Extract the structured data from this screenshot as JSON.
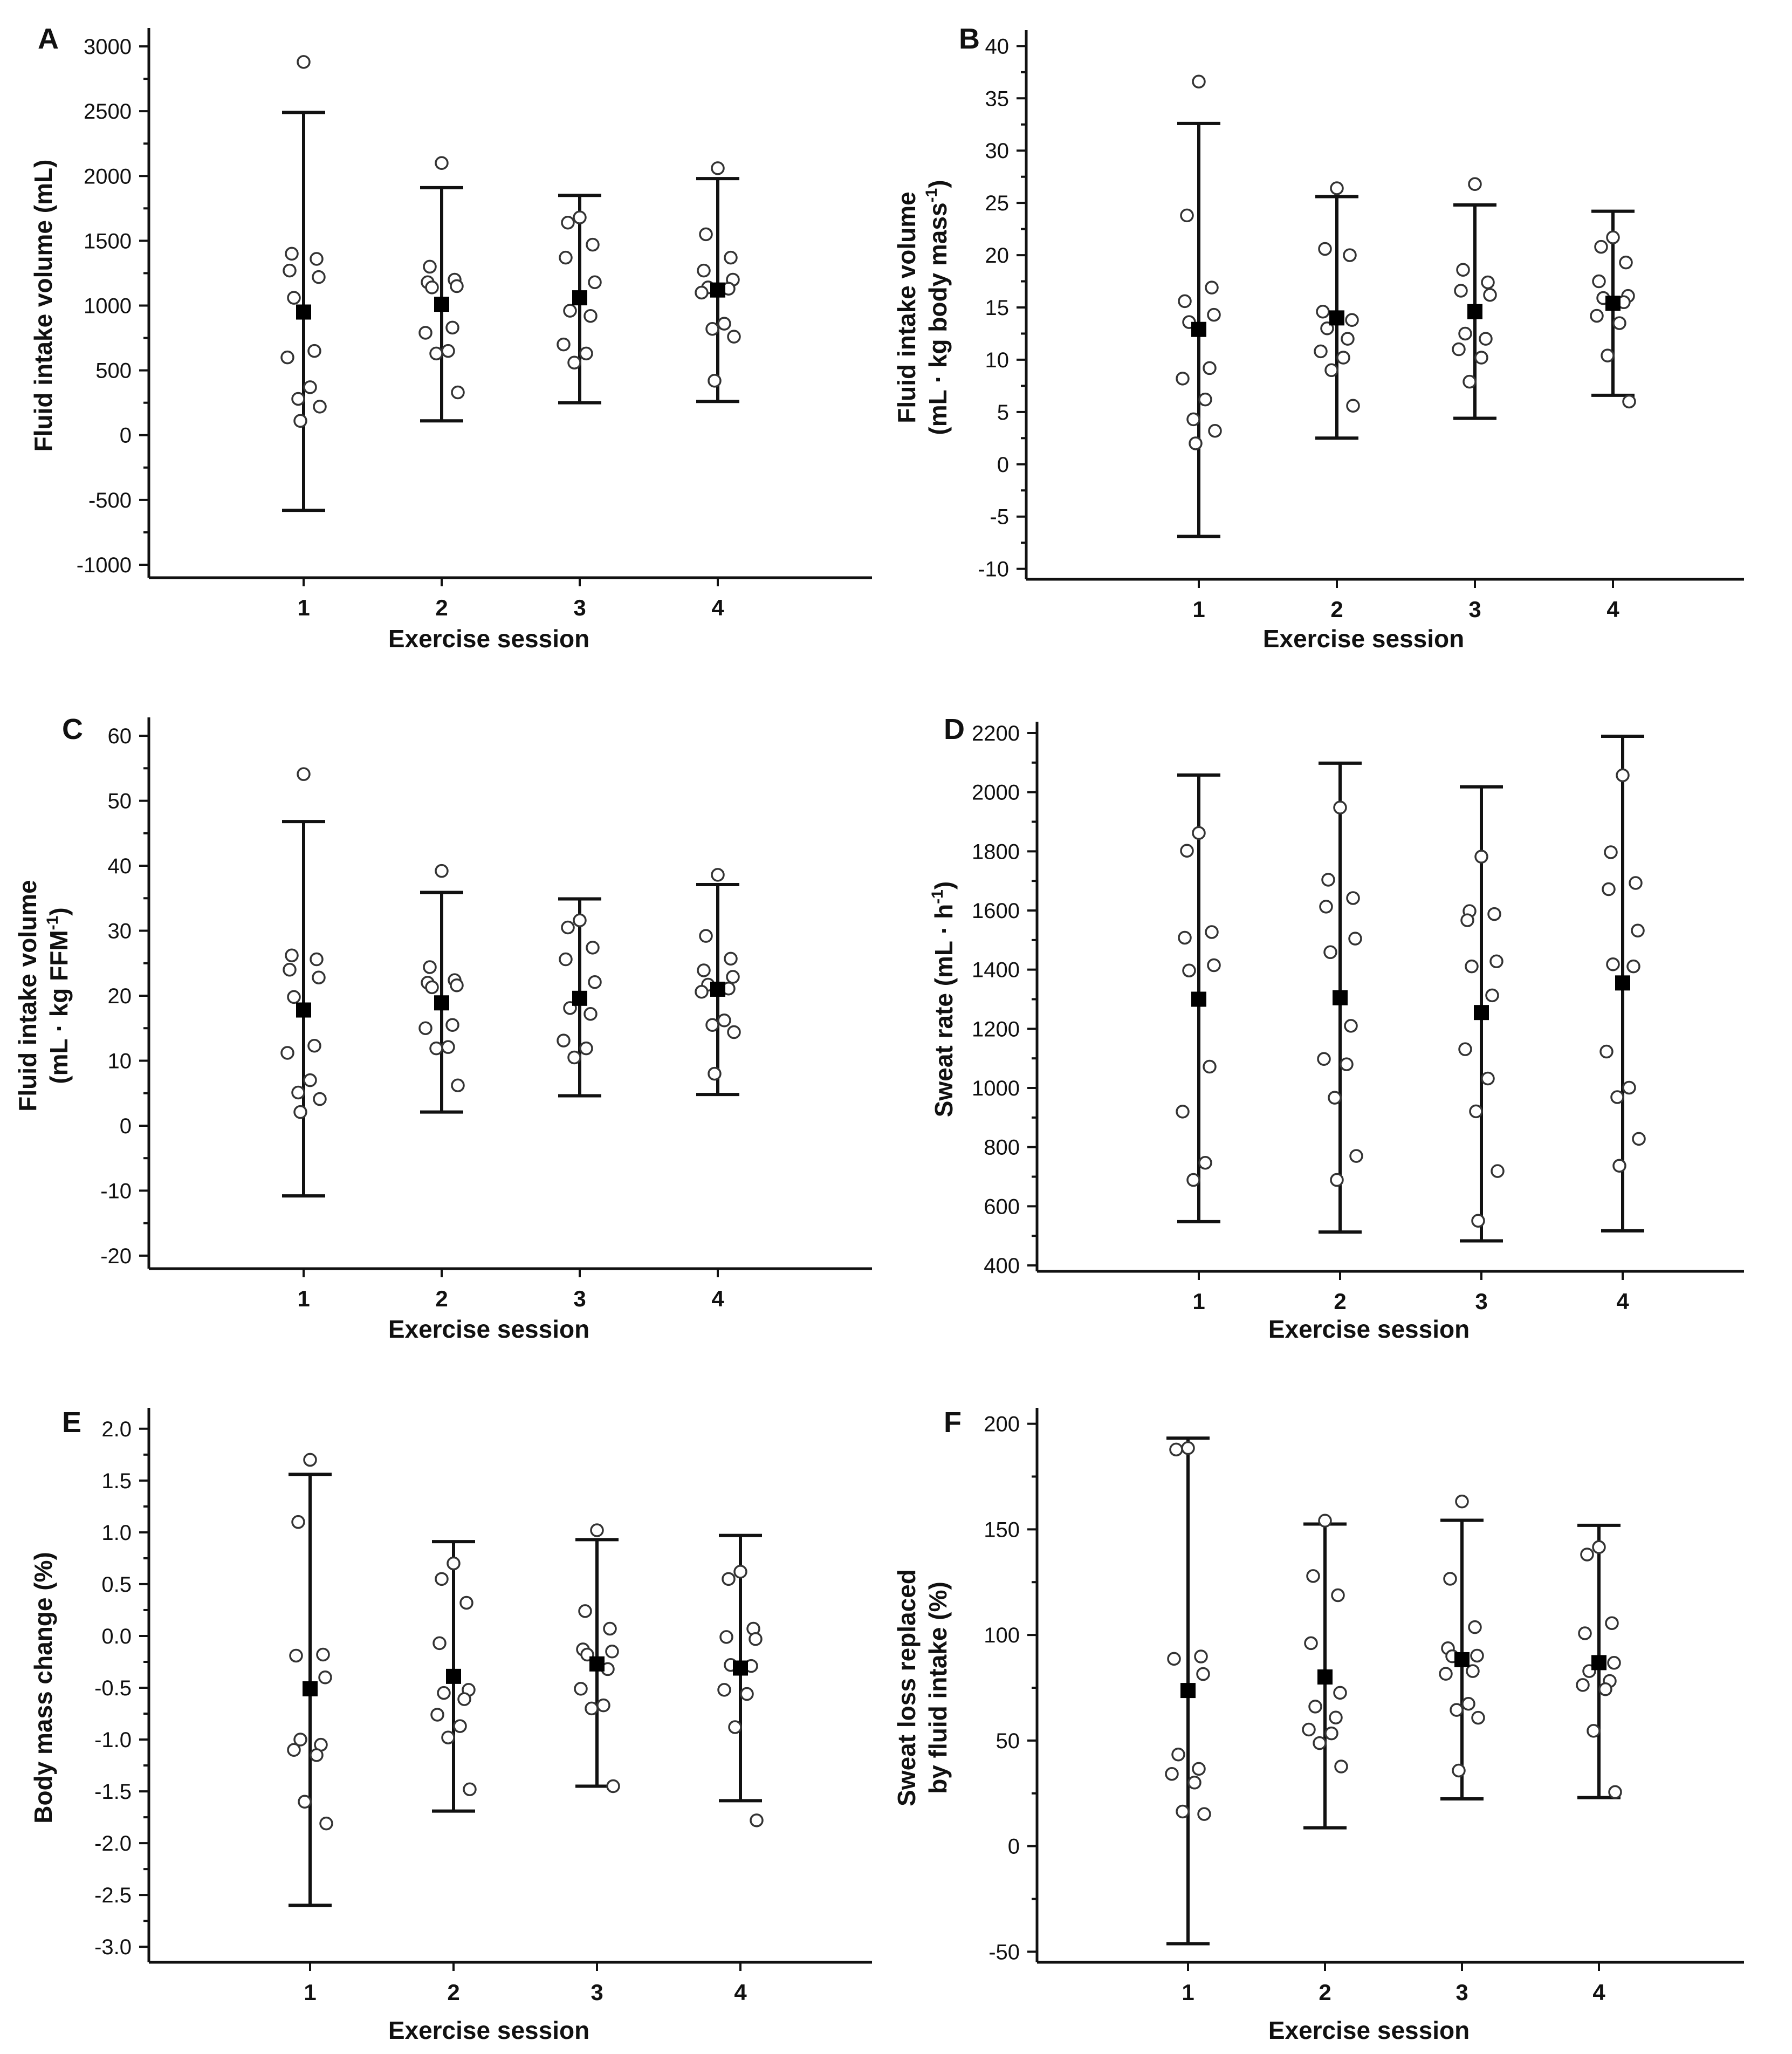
{
  "chart_data": [
    {
      "panel": "A",
      "type": "scatter",
      "xlabel": "Exercise session",
      "ylabel": [
        "Fluid intake volume (mL)"
      ],
      "categories": [
        "1",
        "2",
        "3",
        "4"
      ],
      "ylim": [
        -1100,
        3100
      ],
      "yticks": [
        -1000,
        -500,
        0,
        500,
        1000,
        1500,
        2000,
        2500,
        3000
      ],
      "yticklabels": [
        "-1000",
        "-500",
        "0",
        "500",
        "1000",
        "1500",
        "2000",
        "2500",
        "3000"
      ],
      "means": [
        950,
        1010,
        1060,
        1120
      ],
      "error_bars": [
        [
          -580,
          2490
        ],
        [
          110,
          1910
        ],
        [
          250,
          1850
        ],
        [
          260,
          1980
        ]
      ],
      "points": [
        [
          2880,
          1400,
          1360,
          1270,
          1220,
          1060,
          650,
          600,
          370,
          280,
          220,
          110
        ],
        [
          2100,
          1300,
          1200,
          1180,
          1150,
          1140,
          830,
          790,
          650,
          630,
          330
        ],
        [
          1680,
          1640,
          1470,
          1370,
          1180,
          960,
          920,
          700,
          630,
          560
        ],
        [
          2060,
          1550,
          1370,
          1270,
          1200,
          1140,
          1130,
          1100,
          860,
          820,
          760,
          420
        ]
      ]
    },
    {
      "panel": "B",
      "type": "scatter",
      "xlabel": "Exercise session",
      "ylabel": [
        "Fluid intake volume",
        "(mL · kg body mass",
        "-1",
        ")"
      ],
      "categories": [
        "1",
        "2",
        "3",
        "4"
      ],
      "ylim": [
        -11,
        41
      ],
      "yticks": [
        -10,
        -5,
        0,
        5,
        10,
        15,
        20,
        25,
        30,
        35,
        40
      ],
      "yticklabels": [
        "-10",
        "-5",
        "0",
        "5",
        "10",
        "15",
        "20",
        "25",
        "30",
        "35",
        "40"
      ],
      "means": [
        12.9,
        14.0,
        14.6,
        15.4
      ],
      "error_bars": [
        [
          -6.9,
          32.6
        ],
        [
          2.5,
          25.6
        ],
        [
          4.4,
          24.8
        ],
        [
          6.6,
          24.2
        ]
      ],
      "points": [
        [
          36.6,
          23.8,
          16.9,
          15.6,
          14.3,
          13.6,
          9.2,
          8.2,
          6.2,
          4.3,
          3.2,
          2.0
        ],
        [
          26.4,
          20.6,
          20.0,
          14.6,
          13.8,
          13.0,
          12.0,
          10.8,
          10.2,
          9.0,
          5.6
        ],
        [
          26.8,
          18.6,
          17.4,
          16.6,
          16.2,
          12.5,
          12.0,
          11.0,
          10.2,
          7.9
        ],
        [
          21.7,
          20.8,
          19.3,
          17.5,
          16.1,
          15.9,
          15.5,
          14.2,
          13.5,
          10.4,
          6.0
        ]
      ]
    },
    {
      "panel": "C",
      "type": "scatter",
      "xlabel": "Exercise session",
      "ylabel": [
        "Fluid intake volume",
        "(mL · kg FFM",
        "-1",
        ")"
      ],
      "categories": [
        "1",
        "2",
        "3",
        "4"
      ],
      "ylim": [
        -22,
        62
      ],
      "yticks": [
        -20,
        -10,
        0,
        10,
        20,
        30,
        40,
        50,
        60
      ],
      "yticklabels": [
        "-20",
        "-10",
        "0",
        "10",
        "20",
        "30",
        "40",
        "50",
        "60"
      ],
      "means": [
        17.8,
        18.9,
        19.6,
        21.0
      ],
      "error_bars": [
        [
          -10.8,
          46.8
        ],
        [
          2.1,
          35.9
        ],
        [
          4.6,
          34.9
        ],
        [
          4.8,
          37.1
        ]
      ],
      "points": [
        [
          54.1,
          26.2,
          25.6,
          24.0,
          22.8,
          19.8,
          12.3,
          11.2,
          7.0,
          5.1,
          4.1,
          2.1
        ],
        [
          39.2,
          24.4,
          22.4,
          22.0,
          21.6,
          21.3,
          15.5,
          15.0,
          12.1,
          11.9,
          6.2
        ],
        [
          31.6,
          30.5,
          27.4,
          25.6,
          22.1,
          18.1,
          17.2,
          13.1,
          11.9,
          10.5
        ],
        [
          38.6,
          29.2,
          25.7,
          23.9,
          22.9,
          21.7,
          21.1,
          20.6,
          16.2,
          15.5,
          14.4,
          8.0
        ]
      ]
    },
    {
      "panel": "D",
      "type": "scatter",
      "xlabel": "Exercise session",
      "ylabel": [
        "Sweat rate (mL · h",
        "-1",
        ")"
      ],
      "categories": [
        "1",
        "2",
        "3",
        "4"
      ],
      "ylim": [
        380,
        2220
      ],
      "yticks": [
        400,
        600,
        800,
        1000,
        1200,
        1400,
        1600,
        1800,
        2000,
        2200
      ],
      "yticklabels": [
        "400",
        "600",
        "800",
        "1000",
        "1200",
        "1400",
        "1600",
        "1800",
        "2000",
        "2200"
      ],
      "means": [
        1300,
        1305,
        1255,
        1355
      ],
      "error_bars": [
        [
          548,
          2058
        ],
        [
          513,
          2098
        ],
        [
          483,
          2018
        ],
        [
          517,
          2189
        ]
      ],
      "points": [
        [
          1862,
          1802,
          1527,
          1508,
          1415,
          1397,
          1072,
          920,
          747,
          689
        ],
        [
          1948,
          1704,
          1642,
          1613,
          1505,
          1459,
          1210,
          1098,
          1080,
          967,
          770,
          689
        ],
        [
          1782,
          1598,
          1588,
          1567,
          1428,
          1411,
          1313,
          1131,
          1032,
          921,
          719,
          551
        ],
        [
          2057,
          1797,
          1693,
          1672,
          1532,
          1418,
          1411,
          1123,
          1001,
          969,
          828,
          737
        ]
      ]
    },
    {
      "panel": "E",
      "type": "scatter",
      "xlabel": "Exercise session",
      "ylabel": [
        "Body mass change (%)"
      ],
      "categories": [
        "1",
        "2",
        "3",
        "4"
      ],
      "ylim": [
        -3.15,
        2.15
      ],
      "yticks": [
        -3.0,
        -2.5,
        -2.0,
        -1.5,
        -1.0,
        -0.5,
        0.0,
        0.5,
        1.0,
        1.5,
        2.0
      ],
      "yticklabels": [
        "-3.0",
        "-2.5",
        "-2.0",
        "-1.5",
        "-1.0",
        "-0.5",
        "0.0",
        "0.5",
        "1.0",
        "1.5",
        "2.0"
      ],
      "means": [
        -0.51,
        -0.39,
        -0.27,
        -0.31
      ],
      "error_bars": [
        [
          -2.6,
          1.56
        ],
        [
          -1.69,
          0.91
        ],
        [
          -1.45,
          0.93
        ],
        [
          -1.59,
          0.97
        ]
      ],
      "points": [
        [
          1.7,
          1.1,
          -0.18,
          -0.19,
          -0.4,
          -1.0,
          -1.05,
          -1.1,
          -1.15,
          -1.6,
          -1.81
        ],
        [
          0.7,
          0.55,
          0.32,
          -0.07,
          -0.52,
          -0.55,
          -0.61,
          -0.76,
          -0.87,
          -0.98,
          -1.48
        ],
        [
          1.02,
          0.24,
          0.07,
          -0.13,
          -0.15,
          -0.18,
          -0.32,
          -0.51,
          -0.67,
          -0.7,
          -1.45
        ],
        [
          0.62,
          0.55,
          0.07,
          -0.01,
          -0.03,
          -0.28,
          -0.29,
          -0.52,
          -0.56,
          -0.88,
          -1.78
        ]
      ]
    },
    {
      "panel": "F",
      "type": "scatter",
      "xlabel": "Exercise session",
      "ylabel": [
        "Sweat loss replaced",
        "by fluid intake (%)"
      ],
      "categories": [
        "1",
        "2",
        "3",
        "4"
      ],
      "ylim": [
        -55,
        205
      ],
      "yticks": [
        -50,
        0,
        50,
        100,
        150,
        200
      ],
      "yticklabels": [
        "-50",
        "0",
        "50",
        "100",
        "150",
        "200"
      ],
      "means": [
        73.7,
        80.1,
        88.3,
        86.9
      ],
      "error_bars": [
        [
          -46.2,
          193.2
        ],
        [
          8.7,
          152.5
        ],
        [
          22.4,
          154.3
        ],
        [
          23.0,
          151.9
        ]
      ],
      "points": [
        [
          188.5,
          187.8,
          89.8,
          88.7,
          81.5,
          43.4,
          36.6,
          34.2,
          30.1,
          16.4,
          15.2
        ],
        [
          154.1,
          127.9,
          118.8,
          96.1,
          72.6,
          66.1,
          60.9,
          55.2,
          53.4,
          48.8,
          37.7
        ],
        [
          163.2,
          126.6,
          103.7,
          93.7,
          90.2,
          89.9,
          82.9,
          81.6,
          67.4,
          64.5,
          60.8,
          35.8
        ],
        [
          141.6,
          138.1,
          105.6,
          100.8,
          86.8,
          82.9,
          78.2,
          76.3,
          74.3,
          54.6,
          25.6
        ]
      ]
    }
  ]
}
